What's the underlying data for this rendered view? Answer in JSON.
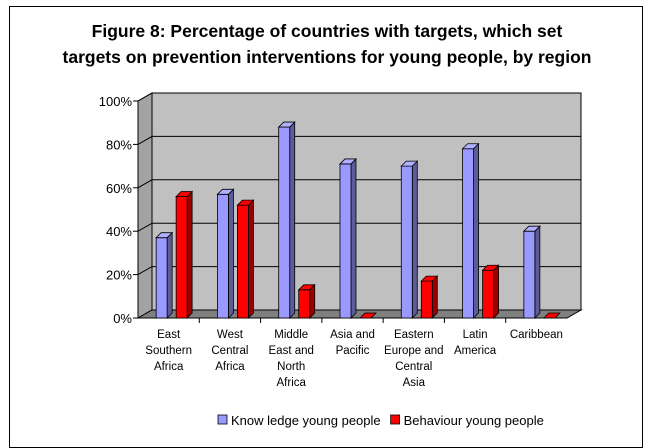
{
  "chart_data": {
    "type": "bar",
    "title": "Figure 8: Percentage of countries with targets, which set targets on prevention interventions for young people, by region",
    "title_lines": [
      "Figure 8: Percentage of countries with targets, which set",
      "targets on prevention interventions for young people, by region"
    ],
    "categories": [
      [
        "East",
        "Southern",
        "Africa"
      ],
      [
        "West",
        "Central",
        "Africa"
      ],
      [
        "Middle",
        "East and",
        "North",
        "Africa"
      ],
      [
        "Asia and",
        "Pacific"
      ],
      [
        "Eastern",
        "Europe and",
        "Central",
        "Asia"
      ],
      [
        "Latin",
        "America"
      ],
      [
        "Caribbean"
      ]
    ],
    "series": [
      {
        "name": "Know ledge young people",
        "color": "#9999ff",
        "values": [
          37,
          57,
          88,
          71,
          70,
          78,
          40
        ]
      },
      {
        "name": "Behaviour young people",
        "color": "#ff0000",
        "values": [
          56,
          52,
          13,
          0,
          17,
          22,
          0
        ]
      }
    ],
    "yticks": [
      "0%",
      "20%",
      "40%",
      "60%",
      "80%",
      "100%"
    ],
    "ylim": [
      0,
      100
    ],
    "grid": true,
    "legend_position": "bottom",
    "wall_color": "#c0c0c0",
    "floor_color": "#808080"
  }
}
